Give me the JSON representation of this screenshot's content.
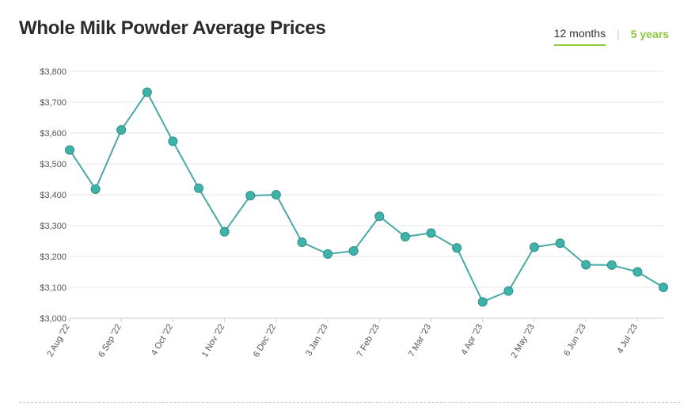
{
  "title": "Whole Milk Powder Average Prices",
  "tabs": [
    {
      "label": "12 months",
      "active": true
    },
    {
      "label": "5 years",
      "active": false
    }
  ],
  "tab_separator": "|",
  "colors": {
    "line": "#4aa8a3",
    "marker": "#3fb3aa",
    "marker_edge": "#2e8f89",
    "accent": "#8dc63f"
  },
  "chart_data": {
    "type": "line",
    "title": "Whole Milk Powder Average Prices",
    "xlabel": "",
    "ylabel": "",
    "ylim": [
      3000,
      3800
    ],
    "yticks": [
      3000,
      3100,
      3200,
      3300,
      3400,
      3500,
      3600,
      3700,
      3800
    ],
    "ytick_labels": [
      "$3,000",
      "$3,100",
      "$3,200",
      "$3,300",
      "$3,400",
      "$3,500",
      "$3,600",
      "$3,700",
      "$3,800"
    ],
    "grid": true,
    "xtick_labels": [
      "2 Aug '22",
      "6 Sep '22",
      "4 Oct '22",
      "1 Nov '22",
      "6 Dec '22",
      "3 Jan '23",
      "7 Feb '23",
      "7 Mar '23",
      "4 Apr '23",
      "2 May '23",
      "6 Jun '23",
      "4 Jul '23"
    ],
    "xtick_indices": [
      0,
      2,
      4,
      6,
      8,
      10,
      12,
      14,
      16,
      18,
      20,
      22
    ],
    "values": [
      3545,
      3418,
      3610,
      3732,
      3573,
      3421,
      3280,
      3397,
      3400,
      3246,
      3208,
      3218,
      3330,
      3264,
      3276,
      3228,
      3053,
      3088,
      3230,
      3243,
      3173,
      3172,
      3150,
      3100
    ]
  }
}
